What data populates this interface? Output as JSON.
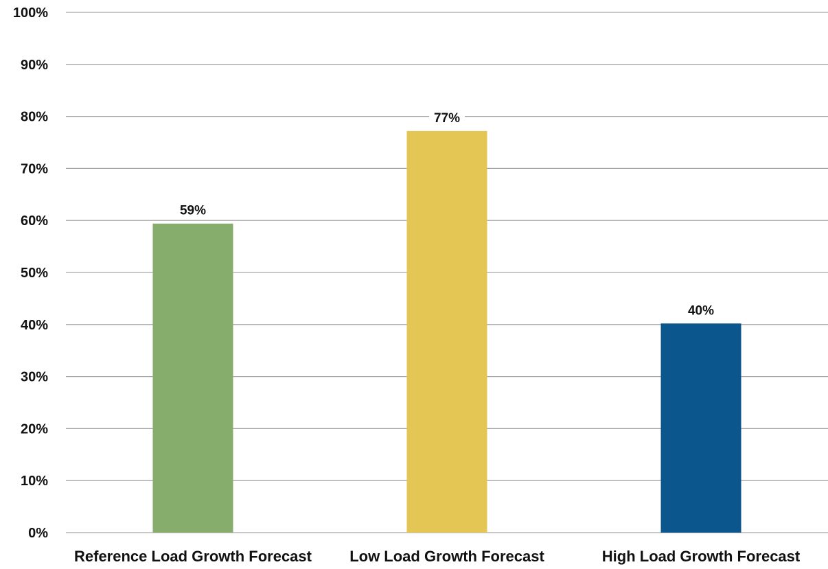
{
  "chart_data": {
    "type": "bar",
    "categories": [
      "Reference Load Growth Forecast",
      "Low Load Growth Forecast",
      "High Load Growth Forecast"
    ],
    "values": [
      59.4,
      77.2,
      40.2
    ],
    "data_labels": [
      "59%",
      "77%",
      "40%"
    ],
    "colors": [
      "#86ad6c",
      "#e3c653",
      "#0b568c"
    ],
    "title": "",
    "xlabel": "",
    "ylabel": "",
    "ylim": [
      0,
      100
    ],
    "y_ticks": [
      0,
      10,
      20,
      30,
      40,
      50,
      60,
      70,
      80,
      90,
      100
    ],
    "y_tick_labels": [
      "0%",
      "10%",
      "20%",
      "30%",
      "40%",
      "50%",
      "60%",
      "70%",
      "80%",
      "90%",
      "100%"
    ],
    "grid": true,
    "legend": "none"
  }
}
